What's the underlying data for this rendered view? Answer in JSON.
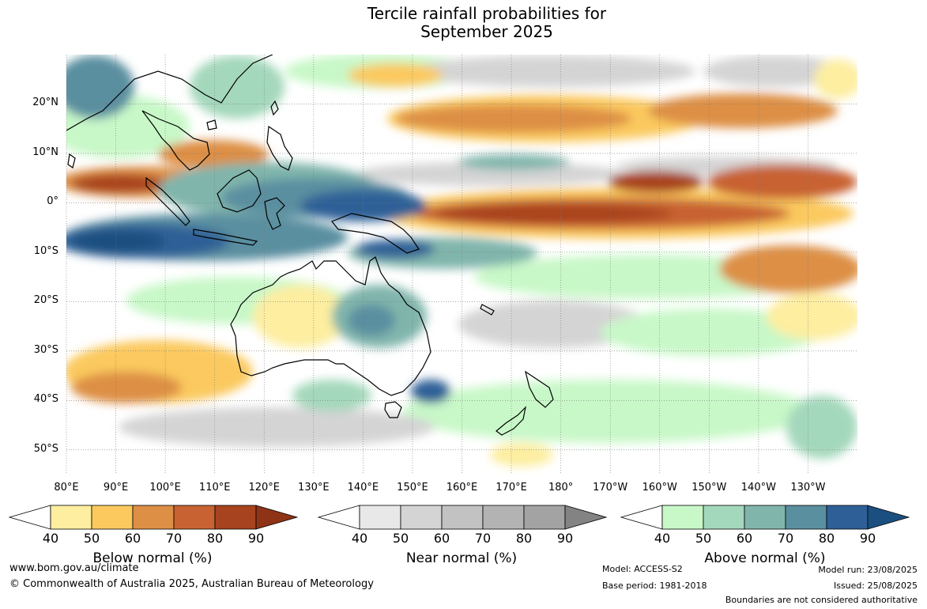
{
  "title": {
    "line1": "Tercile rainfall probabilities for",
    "line2": "September 2025"
  },
  "map": {
    "lat_labels": [
      "20°N",
      "10°N",
      "0°",
      "10°S",
      "20°S",
      "30°S",
      "40°S",
      "50°S"
    ],
    "lon_labels": [
      "80°E",
      "90°E",
      "100°E",
      "110°E",
      "120°E",
      "130°E",
      "140°E",
      "150°E",
      "160°E",
      "170°E",
      "180°",
      "170°W",
      "160°W",
      "150°W",
      "140°W",
      "130°W"
    ],
    "lon_range": [
      80,
      240
    ],
    "lat_range": [
      -55,
      30
    ],
    "grid": true
  },
  "legends": [
    {
      "title": "Below normal (%)",
      "ticks": [
        "40",
        "50",
        "60",
        "70",
        "80",
        "90"
      ],
      "colors": [
        "#fdeea0",
        "#fbc95e",
        "#dd8f45",
        "#c86232",
        "#a8431f",
        "#8f3317"
      ]
    },
    {
      "title": "Near normal (%)",
      "ticks": [
        "40",
        "50",
        "60",
        "70",
        "80",
        "90"
      ],
      "colors": [
        "#e8e8e8",
        "#d4d4d4",
        "#c2c2c2",
        "#b3b3b3",
        "#a3a3a3",
        "#838383"
      ]
    },
    {
      "title": "Above normal (%)",
      "ticks": [
        "40",
        "50",
        "60",
        "70",
        "80",
        "90"
      ],
      "colors": [
        "#c8f8c8",
        "#a4d8bc",
        "#80b5ac",
        "#5a8fa0",
        "#2e6097",
        "#1b4f80"
      ]
    }
  ],
  "footer": {
    "website": "www.bom.gov.au/climate",
    "copyright": "© Commonwealth of Australia 2025, Australian Bureau of Meteorology",
    "model": "Model: ACCESS-S2",
    "base_period": "Base period: 1981-2018",
    "model_run": "Model run: 23/08/2025",
    "issued": "Issued: 25/08/2025",
    "boundaries": "Boundaries are not considered authoritative"
  }
}
